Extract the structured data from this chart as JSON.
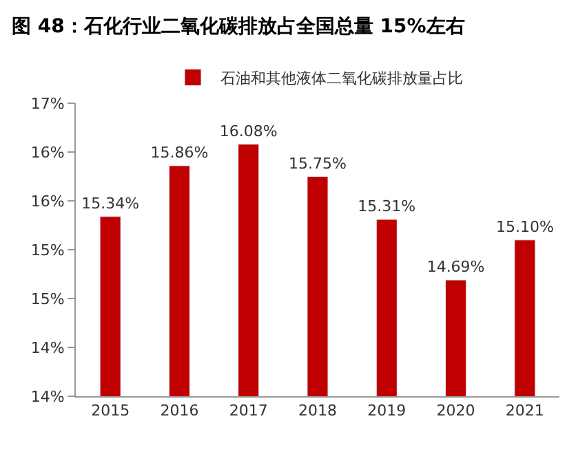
{
  "chart_data": {
    "type": "bar",
    "title": "图 48：石化行业二氧化碳排放占全国总量 15%左右",
    "categories": [
      "2015",
      "2016",
      "2017",
      "2018",
      "2019",
      "2020",
      "2021"
    ],
    "series": [
      {
        "name": "石油和其他液体二氧化碳排放量占比",
        "color": "#c00000",
        "values": [
          15.34,
          15.86,
          16.08,
          15.75,
          15.31,
          14.69,
          15.1
        ],
        "value_labels": [
          "15.34%",
          "15.86%",
          "16.08%",
          "15.75%",
          "15.31%",
          "14.69%",
          "15.10%"
        ]
      }
    ],
    "ylim": [
      13.5,
      16.5
    ],
    "yticks": [
      {
        "value": 13.5,
        "label": "14%"
      },
      {
        "value": 14,
        "label": "14%"
      },
      {
        "value": 14.5,
        "label": "15%"
      },
      {
        "value": 15,
        "label": "15%"
      },
      {
        "value": 15.5,
        "label": "16%"
      },
      {
        "value": 16,
        "label": "16%"
      },
      {
        "value": 16.5,
        "label": "17%"
      }
    ],
    "grid": false,
    "legend": "top"
  }
}
